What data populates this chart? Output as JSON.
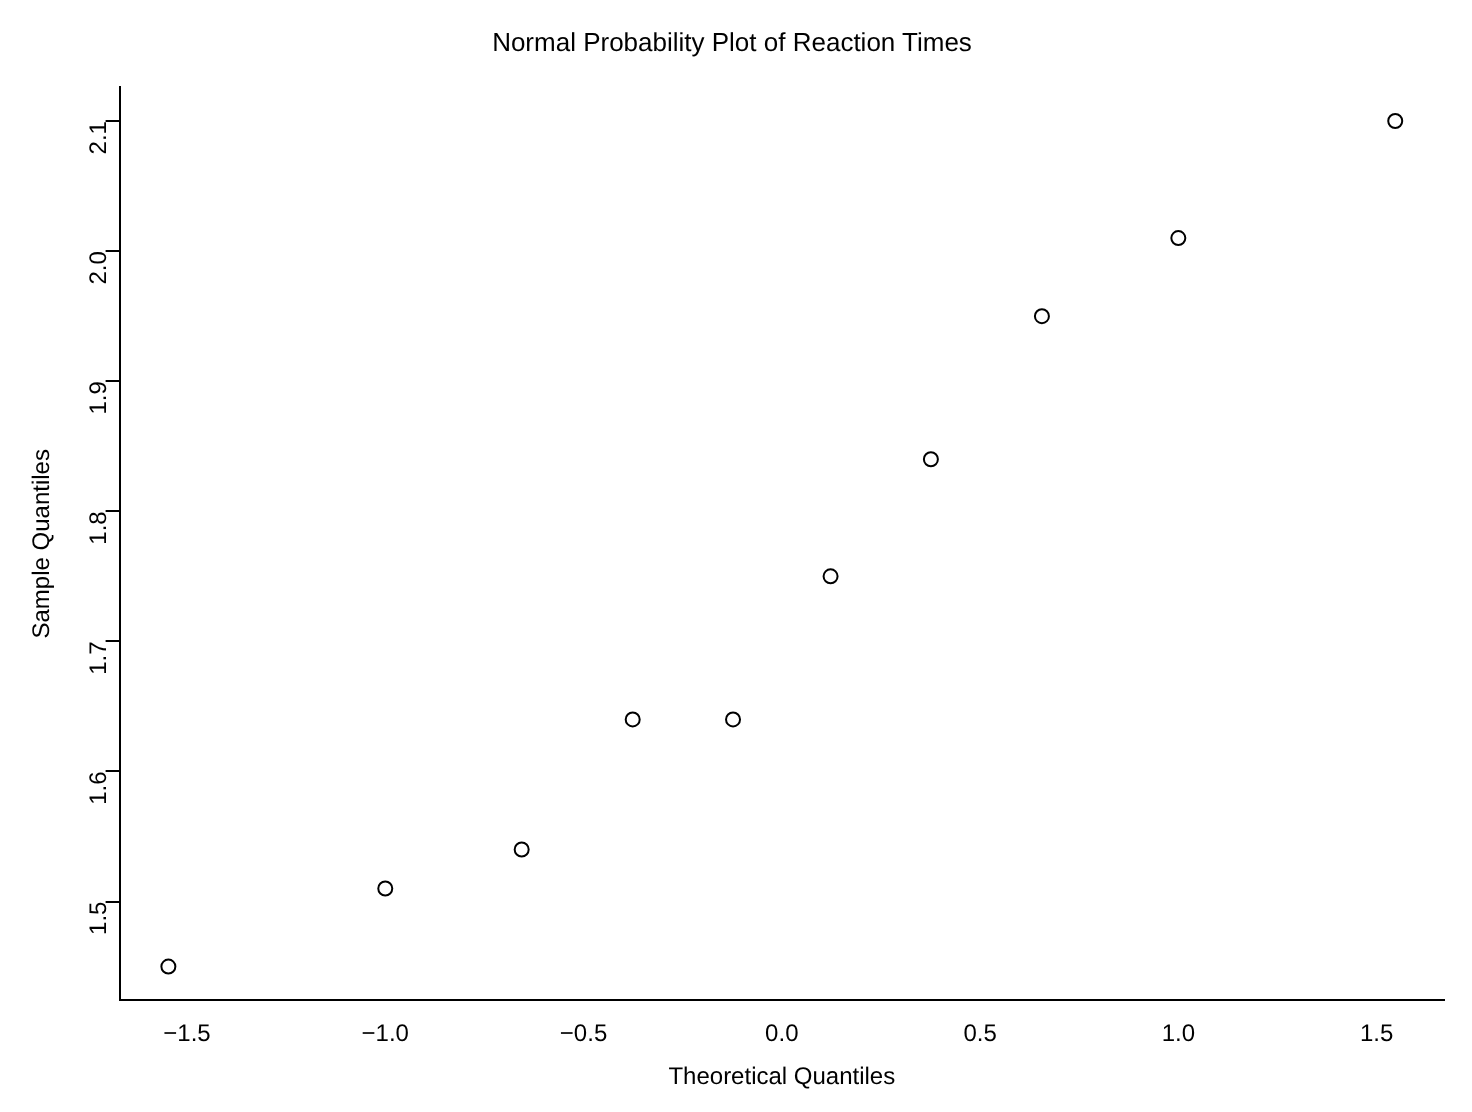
{
  "chart_data": {
    "type": "scatter",
    "title": "Normal Probability Plot of Reaction Times",
    "xlabel": "Theoretical Quantiles",
    "ylabel": "Sample Quantiles",
    "x": [
      -1.547,
      -1.0,
      -0.656,
      -0.376,
      -0.123,
      0.123,
      0.376,
      0.656,
      1.0,
      1.547
    ],
    "series": [
      {
        "color": "#000000",
        "values": [
          1.45,
          1.51,
          1.54,
          1.64,
          1.64,
          1.75,
          1.84,
          1.95,
          2.01,
          2.1
        ]
      }
    ],
    "xlim": [
      -1.67,
      1.67
    ],
    "xticks": [
      {
        "value": -1.5,
        "label": "−1.5"
      },
      {
        "value": -1.0,
        "label": "−1.0"
      },
      {
        "value": -0.5,
        "label": "−0.5"
      },
      {
        "value": 0,
        "label": "0.0"
      },
      {
        "value": 0.5,
        "label": "0.5"
      },
      {
        "value": 1.0,
        "label": "1.0"
      },
      {
        "value": 1.5,
        "label": "1.5"
      }
    ],
    "ylim": [
      1.424,
      2.126
    ],
    "yticks": [
      1.5,
      {
        "value": 1.6,
        "label": "1.6"
      },
      1.7,
      1.8,
      1.9,
      {
        "value": 2.0,
        "label": "2.0"
      },
      2.1
    ],
    "grid": false,
    "legend": false,
    "marker": "circle"
  }
}
